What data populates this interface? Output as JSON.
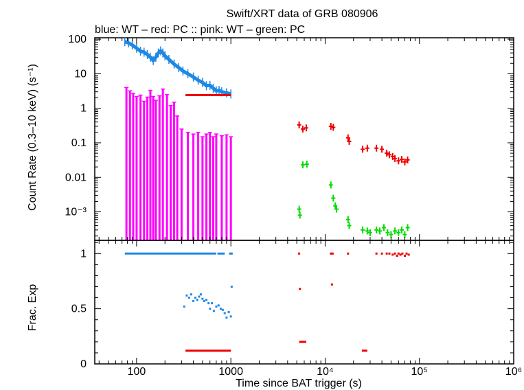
{
  "header": {
    "title": "Swift/XRT data of GRB 080906",
    "legend_text": "blue: WT  – red: PC  :: pink: WT  – green: PC"
  },
  "colors": {
    "blue": "#1e88e5",
    "red": "#ee0000",
    "pink": "#ff00ff",
    "green": "#00dd00",
    "axis": "#000000"
  },
  "chart_data": [
    {
      "type": "scatter",
      "panel": "count-rate",
      "xlabel": "Time since BAT trigger (s)",
      "ylabel": "Count Rate (0.3–10 keV) (s⁻¹)",
      "xscale": "log",
      "yscale": "log",
      "xlim": [
        36,
        1000000
      ],
      "ylim": [
        0.00015,
        110
      ],
      "x_ticks": [
        {
          "value": 100,
          "label": "100"
        },
        {
          "value": 1000,
          "label": "1000"
        },
        {
          "value": 10000,
          "label": "10⁴"
        },
        {
          "value": 100000,
          "label": "10⁵"
        },
        {
          "value": 1000000,
          "label": "10⁶"
        }
      ],
      "y_ticks": [
        {
          "value": 100,
          "label": "100"
        },
        {
          "value": 10,
          "label": "10"
        },
        {
          "value": 1,
          "label": "1"
        },
        {
          "value": 0.1,
          "label": "0.1"
        },
        {
          "value": 0.01,
          "label": "0.01"
        },
        {
          "value": 0.001,
          "label": "10⁻³"
        }
      ],
      "series": [
        {
          "name": "blue: WT",
          "color": "#1e88e5",
          "kind": "band",
          "points": [
            [
              75,
              85
            ],
            [
              82,
              78
            ],
            [
              90,
              68
            ],
            [
              100,
              55
            ],
            [
              110,
              45
            ],
            [
              120,
              42
            ],
            [
              130,
              36
            ],
            [
              140,
              30
            ],
            [
              150,
              24
            ],
            [
              160,
              30
            ],
            [
              170,
              40
            ],
            [
              180,
              46
            ],
            [
              190,
              40
            ],
            [
              200,
              33
            ],
            [
              220,
              26
            ],
            [
              250,
              19
            ],
            [
              280,
              15
            ],
            [
              310,
              12
            ],
            [
              350,
              10
            ],
            [
              400,
              8
            ],
            [
              450,
              6.5
            ],
            [
              500,
              5.6
            ],
            [
              550,
              4.5
            ],
            [
              600,
              4.6
            ],
            [
              650,
              3.8
            ],
            [
              700,
              3.2
            ],
            [
              750,
              3.3
            ],
            [
              800,
              3.0
            ],
            [
              900,
              2.8
            ],
            [
              1000,
              2.6
            ]
          ]
        },
        {
          "name": "red: PC",
          "color": "#ee0000",
          "kind": "points",
          "points": [
            [
              330,
              2.4
            ],
            [
              1000,
              2.4
            ],
            [
              5300,
              0.33
            ],
            [
              5800,
              0.25
            ],
            [
              6300,
              0.27
            ],
            [
              11500,
              0.3
            ],
            [
              12200,
              0.28
            ],
            [
              17500,
              0.14
            ],
            [
              18000,
              0.11
            ],
            [
              25000,
              0.065
            ],
            [
              28000,
              0.07
            ],
            [
              35000,
              0.07
            ],
            [
              40000,
              0.065
            ],
            [
              45000,
              0.05
            ],
            [
              48000,
              0.045
            ],
            [
              52000,
              0.04
            ],
            [
              55000,
              0.035
            ],
            [
              60000,
              0.03
            ],
            [
              65000,
              0.033
            ],
            [
              70000,
              0.028
            ],
            [
              75000,
              0.032
            ]
          ]
        },
        {
          "name": "pink: WT",
          "color": "#ff00ff",
          "kind": "spikes",
          "points": [
            [
              78,
              4.0
            ],
            [
              85,
              3.2
            ],
            [
              92,
              2.7
            ],
            [
              100,
              2.2
            ],
            [
              110,
              2.4
            ],
            [
              120,
              1.6
            ],
            [
              130,
              2.1
            ],
            [
              140,
              3.3
            ],
            [
              150,
              2.2
            ],
            [
              160,
              1.7
            ],
            [
              175,
              2.3
            ],
            [
              190,
              3.6
            ],
            [
              210,
              2.5
            ],
            [
              230,
              1.2
            ],
            [
              250,
              1.5
            ],
            [
              270,
              0.6
            ],
            [
              300,
              0.25
            ],
            [
              350,
              0.2
            ],
            [
              400,
              0.18
            ],
            [
              450,
              0.2
            ],
            [
              500,
              0.15
            ],
            [
              550,
              0.18
            ],
            [
              600,
              0.2
            ],
            [
              650,
              0.15
            ],
            [
              700,
              0.18
            ],
            [
              800,
              0.16
            ],
            [
              900,
              0.17
            ],
            [
              1000,
              0.15
            ]
          ]
        },
        {
          "name": "green: PC",
          "color": "#00dd00",
          "kind": "points",
          "points": [
            [
              5300,
              0.0012
            ],
            [
              5400,
              0.0008
            ],
            [
              5800,
              0.023
            ],
            [
              6400,
              0.024
            ],
            [
              11500,
              0.006
            ],
            [
              12200,
              0.0025
            ],
            [
              12800,
              0.0015
            ],
            [
              13200,
              0.0012
            ],
            [
              17500,
              0.0006
            ],
            [
              18000,
              0.0004
            ],
            [
              25000,
              0.0003
            ],
            [
              28000,
              0.00028
            ],
            [
              30000,
              0.00025
            ],
            [
              35000,
              0.0003
            ],
            [
              38000,
              0.00028
            ],
            [
              42000,
              0.00035
            ],
            [
              46000,
              0.00025
            ],
            [
              50000,
              0.00022
            ],
            [
              55000,
              0.00028
            ],
            [
              60000,
              0.00025
            ],
            [
              65000,
              0.0003
            ],
            [
              70000,
              0.00022
            ],
            [
              75000,
              0.00035
            ]
          ]
        }
      ]
    },
    {
      "type": "scatter",
      "panel": "frac-exp",
      "xlabel": "Time since BAT trigger (s)",
      "ylabel": "Frac. Exp",
      "xscale": "log",
      "yscale": "linear",
      "xlim": [
        36,
        1000000
      ],
      "ylim": [
        0,
        1.12
      ],
      "y_ticks": [
        {
          "value": 1,
          "label": "1"
        },
        {
          "value": 0.5,
          "label": "0.5"
        },
        {
          "value": 0,
          "label": "0"
        }
      ],
      "series": [
        {
          "name": "blue: WT",
          "color": "#1e88e5",
          "kind": "segments",
          "segments": [
            {
              "x": [
                75,
                700
              ],
              "y": 1.0
            },
            {
              "x": [
                720,
                860
              ],
              "y": 1.0
            }
          ],
          "points": [
            [
              980,
              1.0
            ],
            [
              1020,
              1.0
            ],
            [
              320,
              0.52
            ],
            [
              340,
              0.62
            ],
            [
              360,
              0.6
            ],
            [
              380,
              0.63
            ],
            [
              400,
              0.57
            ],
            [
              420,
              0.6
            ],
            [
              440,
              0.58
            ],
            [
              460,
              0.61
            ],
            [
              480,
              0.63
            ],
            [
              500,
              0.59
            ],
            [
              520,
              0.57
            ],
            [
              550,
              0.58
            ],
            [
              580,
              0.55
            ],
            [
              600,
              0.5
            ],
            [
              630,
              0.55
            ],
            [
              660,
              0.48
            ],
            [
              700,
              0.52
            ],
            [
              740,
              0.53
            ],
            [
              780,
              0.5
            ],
            [
              820,
              0.49
            ],
            [
              860,
              0.46
            ],
            [
              900,
              0.42
            ],
            [
              950,
              0.47
            ],
            [
              1000,
              0.43
            ],
            [
              1020,
              0.7
            ]
          ]
        },
        {
          "name": "red: PC",
          "color": "#ee0000",
          "kind": "segments",
          "segments": [
            {
              "x": [
                330,
                1000
              ],
              "y": 0.12
            },
            {
              "x": [
                5300,
                6300
              ],
              "y": 0.2
            },
            {
              "x": [
                24500,
                28000
              ],
              "y": 0.12
            }
          ],
          "points": [
            [
              5300,
              1.0
            ],
            [
              5400,
              0.68
            ],
            [
              11500,
              1.0
            ],
            [
              12000,
              1.0
            ],
            [
              11800,
              0.72
            ],
            [
              17500,
              1.0
            ],
            [
              35000,
              1.0
            ],
            [
              40000,
              1.0
            ],
            [
              45000,
              1.0
            ],
            [
              48000,
              1.0
            ],
            [
              52000,
              0.99
            ],
            [
              55000,
              1.0
            ],
            [
              58000,
              0.98
            ],
            [
              60000,
              1.0
            ],
            [
              63000,
              0.99
            ],
            [
              66000,
              1.0
            ],
            [
              70000,
              0.98
            ],
            [
              73000,
              1.0
            ],
            [
              77000,
              0.99
            ]
          ]
        }
      ]
    }
  ]
}
